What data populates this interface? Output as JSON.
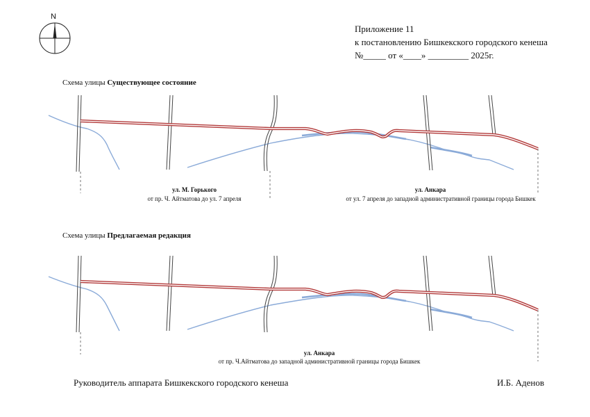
{
  "compass": {
    "north_label": "N"
  },
  "header": {
    "line1": "Приложение   11",
    "line2": "к постановлению  Бишкекского городского кенеша",
    "line3": "№_____ от «____» _________ 2025г."
  },
  "section1": {
    "caption_prefix": "Схема улицы ",
    "caption_bold": "Существующее состояние",
    "street_left": {
      "name": "ул. М. Горького",
      "range": "от пр. Ч. Айтматова до ул. 7 апреля"
    },
    "street_right": {
      "name": "ул. Анкара",
      "range": "от ул. 7 апреля до западной административной границы города Бишкек"
    }
  },
  "section2": {
    "caption_prefix": "Схема улицы ",
    "caption_bold": "Предлагаемая редакция",
    "street": {
      "name": "ул. Анкара",
      "range": "от пр. Ч.Айтматова до западной административной границы города Бишкек"
    }
  },
  "footer": {
    "left": "Руководитель аппарата Бишкекского городского кенеша",
    "right": "И.Б. Аденов"
  },
  "colors": {
    "street_line": "#b23a3a",
    "street_line_inner": "#ffffff",
    "river": "#8aaad8",
    "cross_road": "#444444"
  }
}
